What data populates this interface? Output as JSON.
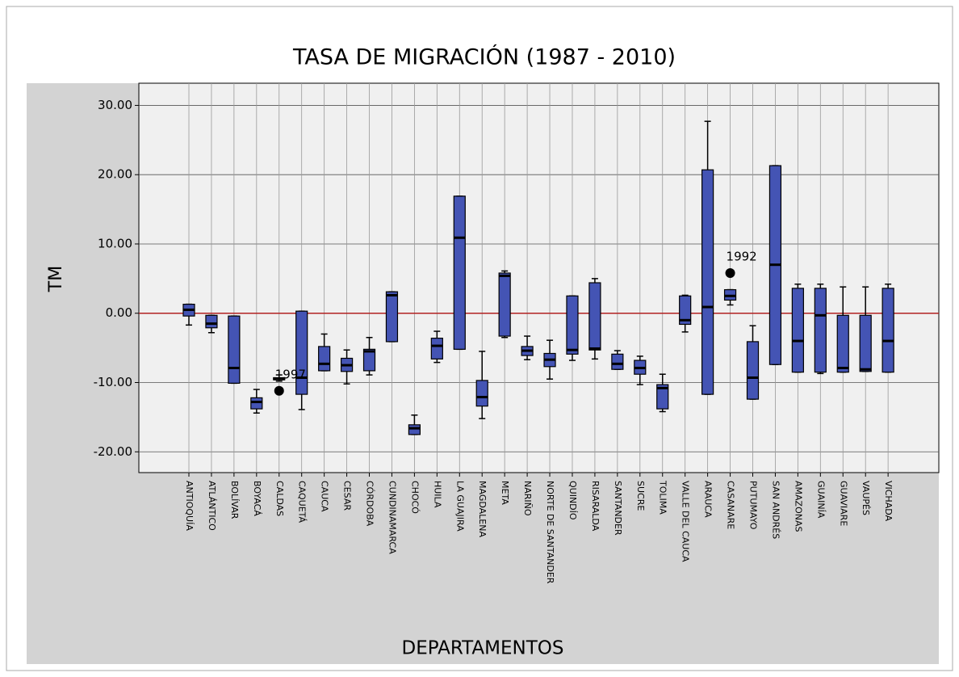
{
  "chart_data": {
    "type": "box",
    "title": "TASA DE MIGRACIÓN (1987 - 2010)",
    "x_label": "DEPARTAMENTOS",
    "y_label": "TM",
    "categories": [
      "ANTIOQUÍA",
      "ATLÁNTICO",
      "BOLÍVAR",
      "BOYACÁ",
      "CALDAS",
      "CAQUETÁ",
      "CAUCA",
      "CESAR",
      "CÓRDOBA",
      "CUNDINAMARCA",
      "CHOCÓ",
      "HUILA",
      "LA GUAJIRA",
      "MAGDALENA",
      "META",
      "NARIÑO",
      "NORTE DE SANTANDER",
      "QUINDÍO",
      "RISARALDA",
      "SANTANDER",
      "SUCRE",
      "TOLIMA",
      "VALLE DEL CAUCA",
      "ARAUCA",
      "CASANARE",
      "PUTUMAYO",
      "SAN ANDRÉS",
      "AMAZONAS",
      "GUAINÍA",
      "GUAVIARE",
      "VAUPÉS",
      "VICHADA"
    ],
    "min": [
      -1.7,
      -2.8,
      -10.1,
      -14.4,
      -9.8,
      -13.9,
      -8.3,
      -10.2,
      -8.9,
      -4.1,
      -17.5,
      -7.1,
      -5.2,
      -15.2,
      -3.5,
      -6.7,
      -9.5,
      -6.8,
      -6.6,
      -8.1,
      -10.3,
      -14.2,
      -2.7,
      -11.7,
      1.2,
      -12.4,
      -7.4,
      -8.5,
      -8.7,
      -8.5,
      -8.4,
      -8.5
    ],
    "q1": [
      -0.4,
      -2.1,
      -10.1,
      -13.8,
      -9.6,
      -11.7,
      -8.3,
      -8.4,
      -8.3,
      -4.1,
      -17.5,
      -6.6,
      -5.2,
      -13.4,
      -3.3,
      -6.1,
      -7.7,
      -5.9,
      -5.3,
      -8.1,
      -8.8,
      -13.8,
      -1.6,
      -11.7,
      1.9,
      -12.4,
      -7.4,
      -8.5,
      -8.5,
      -8.5,
      -8.4,
      -8.5
    ],
    "median": [
      0.5,
      -1.5,
      -7.9,
      -12.8,
      -9.5,
      -9.3,
      -7.3,
      -7.5,
      -5.5,
      2.6,
      -16.6,
      -4.7,
      10.9,
      -12.1,
      5.4,
      -5.4,
      -6.7,
      -5.3,
      -5.1,
      -7.3,
      -7.9,
      -10.8,
      -1.0,
      0.9,
      2.5,
      -9.3,
      7.0,
      -4.0,
      -0.3,
      -7.9,
      -8.1,
      -4.0
    ],
    "q3": [
      1.3,
      -0.3,
      -0.4,
      -12.2,
      -9.3,
      0.3,
      -4.8,
      -6.5,
      -5.2,
      3.1,
      -16.1,
      -3.6,
      16.9,
      -9.7,
      5.8,
      -4.8,
      -5.8,
      2.5,
      4.4,
      -5.9,
      -6.8,
      -10.3,
      2.5,
      20.7,
      3.4,
      -4.1,
      21.3,
      3.6,
      3.6,
      -0.3,
      -0.3,
      3.6
    ],
    "max": [
      1.3,
      -0.3,
      -0.4,
      -11.0,
      -8.9,
      0.3,
      -3.0,
      -5.3,
      -3.5,
      3.1,
      -14.7,
      -2.6,
      16.9,
      -5.5,
      6.1,
      -3.3,
      -3.9,
      2.5,
      5.0,
      -5.4,
      -6.2,
      -8.8,
      2.6,
      27.7,
      3.4,
      -1.8,
      21.3,
      4.2,
      4.2,
      3.8,
      3.8,
      4.2
    ],
    "outliers": [
      {
        "category": "CALDAS",
        "value": -11.2,
        "label": "1997"
      },
      {
        "category": "CASANARE",
        "value": 5.8,
        "label": "1992"
      }
    ],
    "color": "#4454b4",
    "reference_line": {
      "value": 0,
      "color": "#b22222"
    },
    "ylim": [
      -23,
      33.2
    ],
    "yticks": [
      {
        "value": -20,
        "label": "-20.00"
      },
      {
        "value": -10,
        "label": "-10.00"
      },
      {
        "value": 0,
        "label": "0.00"
      },
      {
        "value": 10,
        "label": "10.00"
      },
      {
        "value": 20,
        "label": "20.00"
      },
      {
        "value": 30,
        "label": "30.00"
      }
    ],
    "grid": true
  }
}
